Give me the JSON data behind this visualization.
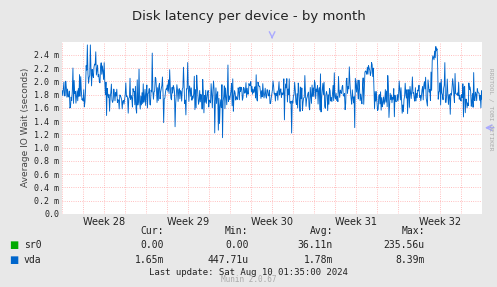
{
  "title": "Disk latency per device - by month",
  "ylabel": "Average IO Wait (seconds)",
  "background_color": "#e8e8e8",
  "plot_bg_color": "#ffffff",
  "grid_color": "#ffaaaa",
  "line_color_vda": "#0066cc",
  "line_color_sr0": "#00aa00",
  "ylim": [
    0.0,
    2.6
  ],
  "ytick_vals": [
    0.0,
    0.2,
    0.4,
    0.6,
    0.8,
    1.0,
    1.2,
    1.4,
    1.6,
    1.8,
    2.0,
    2.2,
    2.4
  ],
  "ytick_labels": [
    "0.0",
    "0.2 m",
    "0.4 m",
    "0.6 m",
    "0.8 m",
    "1.0 m",
    "1.2 m",
    "1.4 m",
    "1.6 m",
    "1.8 m",
    "2.0 m",
    "2.2 m",
    "2.4 m"
  ],
  "xtick_labels": [
    "Week 28",
    "Week 29",
    "Week 30",
    "Week 31",
    "Week 32"
  ],
  "legend_entries": [
    "sr0",
    "vda"
  ],
  "legend_colors": [
    "#00aa00",
    "#0066cc"
  ],
  "footer_cur": [
    "0.00",
    "1.65m"
  ],
  "footer_min": [
    "0.00",
    "447.71u"
  ],
  "footer_avg": [
    "36.11n",
    "1.78m"
  ],
  "footer_max": [
    "235.56u",
    "8.39m"
  ],
  "footer_last_update": "Last update: Sat Aug 10 01:35:00 2024",
  "munin_version": "Munin 2.0.67",
  "rrdtool_label": "RRDTOOL / TOBI OETIKER",
  "num_points": 700,
  "seed": 42,
  "arrow_color": "#aaaaff"
}
